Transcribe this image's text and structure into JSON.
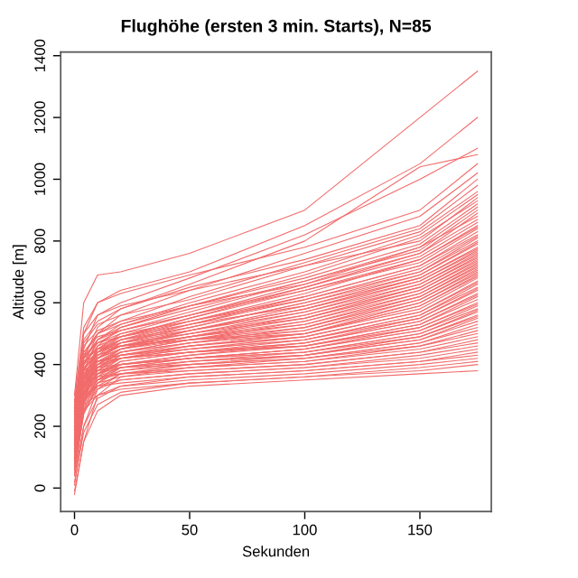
{
  "chart_data": {
    "type": "line",
    "title": "Flughöhe (ersten 3 min. Starts), N=85",
    "xlabel": "Sekunden",
    "ylabel": "Altitude [m]",
    "x": [
      0,
      4,
      10,
      20,
      50,
      100,
      150,
      175
    ],
    "xlim": [
      -6,
      181
    ],
    "ylim": [
      -76,
      1412
    ],
    "xticks": [
      0,
      50,
      100,
      150
    ],
    "yticks": [
      0,
      200,
      400,
      600,
      800,
      1000,
      1200,
      1400
    ],
    "grid": false,
    "marker": "none",
    "line_style": "solid",
    "series": [
      {
        "color": "#f26b6b",
        "values": [
          300,
          600,
          690,
          700,
          760,
          900,
          1200,
          1350
        ]
      },
      {
        "color": "#f26b6b",
        "values": [
          250,
          500,
          600,
          640,
          700,
          850,
          1050,
          1200
        ]
      },
      {
        "color": "#f26b6b",
        "values": [
          200,
          450,
          560,
          600,
          680,
          820,
          1000,
          1100
        ]
      },
      {
        "color": "#f26b6b",
        "values": [
          150,
          420,
          520,
          580,
          660,
          800,
          1040,
          1080
        ]
      },
      {
        "color": "#f26b6b",
        "values": [
          280,
          520,
          600,
          630,
          690,
          780,
          900,
          1050
        ]
      },
      {
        "color": "#f26b6b",
        "values": [
          100,
          400,
          500,
          560,
          640,
          760,
          880,
          1020
        ]
      },
      {
        "color": "#f26b6b",
        "values": [
          220,
          480,
          540,
          580,
          650,
          740,
          850,
          1000
        ]
      },
      {
        "color": "#f26b6b",
        "values": [
          180,
          430,
          500,
          540,
          620,
          730,
          840,
          980
        ]
      },
      {
        "color": "#f26b6b",
        "values": [
          260,
          470,
          530,
          560,
          610,
          720,
          830,
          960
        ]
      },
      {
        "color": "#f26b6b",
        "values": [
          120,
          380,
          480,
          530,
          600,
          700,
          820,
          950
        ]
      },
      {
        "color": "#f26b6b",
        "values": [
          300,
          500,
          560,
          590,
          640,
          720,
          800,
          940
        ]
      },
      {
        "color": "#f26b6b",
        "values": [
          80,
          350,
          460,
          520,
          590,
          690,
          810,
          930
        ]
      },
      {
        "color": "#f26b6b",
        "values": [
          240,
          440,
          500,
          530,
          590,
          680,
          790,
          920
        ]
      },
      {
        "color": "#f26b6b",
        "values": [
          160,
          400,
          470,
          510,
          570,
          670,
          780,
          910
        ]
      },
      {
        "color": "#f26b6b",
        "values": [
          200,
          420,
          480,
          520,
          580,
          670,
          770,
          900
        ]
      },
      {
        "color": "#f26b6b",
        "values": [
          140,
          360,
          450,
          500,
          560,
          660,
          760,
          890
        ]
      },
      {
        "color": "#f26b6b",
        "values": [
          260,
          460,
          510,
          540,
          590,
          660,
          780,
          880
        ]
      },
      {
        "color": "#f26b6b",
        "values": [
          90,
          330,
          440,
          490,
          550,
          650,
          760,
          870
        ]
      },
      {
        "color": "#f26b6b",
        "values": [
          230,
          420,
          480,
          510,
          560,
          650,
          750,
          860
        ]
      },
      {
        "color": "#f26b6b",
        "values": [
          170,
          380,
          450,
          490,
          550,
          640,
          740,
          850
        ]
      },
      {
        "color": "#f26b6b",
        "values": [
          120,
          340,
          430,
          480,
          540,
          630,
          740,
          845
        ]
      },
      {
        "color": "#f26b6b",
        "values": [
          280,
          440,
          490,
          510,
          560,
          640,
          730,
          840
        ]
      },
      {
        "color": "#f26b6b",
        "values": [
          60,
          300,
          420,
          470,
          530,
          620,
          720,
          830
        ]
      },
      {
        "color": "#f26b6b",
        "values": [
          210,
          400,
          460,
          490,
          540,
          620,
          720,
          820
        ]
      },
      {
        "color": "#f26b6b",
        "values": [
          150,
          360,
          440,
          480,
          530,
          610,
          710,
          815
        ]
      },
      {
        "color": "#f26b6b",
        "values": [
          250,
          420,
          470,
          500,
          540,
          610,
          700,
          810
        ]
      },
      {
        "color": "#f26b6b",
        "values": [
          100,
          320,
          420,
          470,
          520,
          600,
          700,
          800
        ]
      },
      {
        "color": "#f26b6b",
        "values": [
          190,
          380,
          440,
          480,
          520,
          600,
          690,
          795
        ]
      },
      {
        "color": "#f26b6b",
        "values": [
          130,
          340,
          420,
          460,
          510,
          590,
          690,
          790
        ]
      },
      {
        "color": "#f26b6b",
        "values": [
          270,
          430,
          470,
          490,
          530,
          590,
          680,
          780
        ]
      },
      {
        "color": "#f26b6b",
        "values": [
          80,
          300,
          400,
          450,
          510,
          580,
          680,
          775
        ]
      },
      {
        "color": "#f26b6b",
        "values": [
          220,
          390,
          440,
          470,
          510,
          580,
          670,
          770
        ]
      },
      {
        "color": "#f26b6b",
        "values": [
          160,
          350,
          420,
          460,
          500,
          570,
          670,
          765
        ]
      },
      {
        "color": "#f26b6b",
        "values": [
          240,
          410,
          450,
          480,
          510,
          570,
          660,
          760
        ]
      },
      {
        "color": "#f26b6b",
        "values": [
          110,
          310,
          400,
          450,
          490,
          560,
          660,
          755
        ]
      },
      {
        "color": "#f26b6b",
        "values": [
          200,
          370,
          430,
          460,
          500,
          560,
          650,
          750
        ]
      },
      {
        "color": "#f26b6b",
        "values": [
          140,
          330,
          410,
          450,
          490,
          550,
          650,
          745
        ]
      },
      {
        "color": "#f26b6b",
        "values": [
          260,
          410,
          450,
          470,
          500,
          550,
          640,
          740
        ]
      },
      {
        "color": "#f26b6b",
        "values": [
          70,
          280,
          390,
          440,
          480,
          540,
          640,
          735
        ]
      },
      {
        "color": "#f26b6b",
        "values": [
          180,
          360,
          420,
          450,
          490,
          540,
          630,
          730
        ]
      },
      {
        "color": "#f26b6b",
        "values": [
          120,
          320,
          400,
          440,
          480,
          530,
          630,
          725
        ]
      },
      {
        "color": "#f26b6b",
        "values": [
          230,
          390,
          430,
          460,
          490,
          530,
          620,
          720
        ]
      },
      {
        "color": "#f26b6b",
        "values": [
          90,
          290,
          380,
          430,
          470,
          520,
          620,
          715
        ]
      },
      {
        "color": "#f26b6b",
        "values": [
          200,
          370,
          420,
          450,
          480,
          520,
          610,
          710
        ]
      },
      {
        "color": "#f26b6b",
        "values": [
          150,
          340,
          400,
          440,
          470,
          510,
          610,
          705
        ]
      },
      {
        "color": "#f26b6b",
        "values": [
          250,
          400,
          440,
          460,
          480,
          510,
          600,
          700
        ]
      },
      {
        "color": "#f26b6b",
        "values": [
          60,
          270,
          370,
          420,
          460,
          500,
          600,
          695
        ]
      },
      {
        "color": "#f26b6b",
        "values": [
          190,
          350,
          410,
          440,
          470,
          500,
          590,
          690
        ]
      },
      {
        "color": "#f26b6b",
        "values": [
          130,
          310,
          390,
          430,
          460,
          500,
          590,
          685
        ]
      },
      {
        "color": "#f26b6b",
        "values": [
          280,
          420,
          450,
          460,
          480,
          500,
          580,
          680
        ]
      },
      {
        "color": "#f26b6b",
        "values": [
          100,
          300,
          380,
          420,
          450,
          490,
          570,
          670
        ]
      },
      {
        "color": "#f26b6b",
        "values": [
          210,
          360,
          410,
          430,
          460,
          490,
          570,
          665
        ]
      },
      {
        "color": "#f26b6b",
        "values": [
          160,
          330,
          390,
          420,
          450,
          480,
          560,
          660
        ]
      },
      {
        "color": "#f26b6b",
        "values": [
          40,
          250,
          360,
          410,
          440,
          480,
          560,
          650
        ]
      },
      {
        "color": "#f26b6b",
        "values": [
          240,
          380,
          410,
          430,
          450,
          480,
          550,
          645
        ]
      },
      {
        "color": "#f26b6b",
        "values": [
          120,
          300,
          370,
          410,
          440,
          470,
          550,
          640
        ]
      },
      {
        "color": "#f26b6b",
        "values": [
          180,
          340,
          390,
          420,
          440,
          470,
          540,
          630
        ]
      },
      {
        "color": "#f26b6b",
        "values": [
          80,
          270,
          350,
          400,
          430,
          470,
          540,
          625
        ]
      },
      {
        "color": "#f26b6b",
        "values": [
          220,
          360,
          400,
          420,
          440,
          460,
          530,
          620
        ]
      },
      {
        "color": "#f26b6b",
        "values": [
          140,
          310,
          370,
          400,
          430,
          460,
          530,
          610
        ]
      },
      {
        "color": "#f26b6b",
        "values": [
          260,
          380,
          410,
          420,
          440,
          460,
          520,
          600
        ]
      },
      {
        "color": "#f26b6b",
        "values": [
          50,
          240,
          340,
          390,
          420,
          450,
          520,
          595
        ]
      },
      {
        "color": "#f26b6b",
        "values": [
          200,
          340,
          380,
          400,
          420,
          450,
          510,
          590
        ]
      },
      {
        "color": "#f26b6b",
        "values": [
          110,
          280,
          350,
          390,
          420,
          450,
          510,
          580
        ]
      },
      {
        "color": "#f26b6b",
        "values": [
          170,
          320,
          370,
          400,
          420,
          440,
          500,
          575
        ]
      },
      {
        "color": "#f26b6b",
        "values": [
          230,
          360,
          390,
          400,
          420,
          440,
          500,
          570
        ]
      },
      {
        "color": "#f26b6b",
        "values": [
          90,
          260,
          340,
          380,
          410,
          440,
          490,
          560
        ]
      },
      {
        "color": "#f26b6b",
        "values": [
          150,
          300,
          360,
          390,
          410,
          430,
          490,
          555
        ]
      },
      {
        "color": "#f26b6b",
        "values": [
          10,
          200,
          320,
          370,
          400,
          430,
          480,
          550
        ]
      },
      {
        "color": "#f26b6b",
        "values": [
          200,
          330,
          370,
          390,
          410,
          430,
          480,
          540
        ]
      },
      {
        "color": "#f26b6b",
        "values": [
          130,
          290,
          350,
          380,
          400,
          420,
          470,
          530
        ]
      },
      {
        "color": "#f26b6b",
        "values": [
          250,
          360,
          380,
          390,
          400,
          420,
          470,
          520
        ]
      },
      {
        "color": "#f26b6b",
        "values": [
          70,
          240,
          330,
          370,
          390,
          420,
          460,
          510
        ]
      },
      {
        "color": "#f26b6b",
        "values": [
          180,
          310,
          350,
          370,
          390,
          410,
          460,
          500
        ]
      },
      {
        "color": "#f26b6b",
        "values": [
          -20,
          150,
          300,
          360,
          390,
          410,
          450,
          490
        ]
      },
      {
        "color": "#f26b6b",
        "values": [
          140,
          280,
          340,
          360,
          380,
          400,
          440,
          480
        ]
      },
      {
        "color": "#f26b6b",
        "values": [
          220,
          330,
          360,
          370,
          380,
          400,
          440,
          470
        ]
      },
      {
        "color": "#f26b6b",
        "values": [
          100,
          250,
          320,
          350,
          370,
          390,
          430,
          460
        ]
      },
      {
        "color": "#f26b6b",
        "values": [
          160,
          290,
          330,
          350,
          370,
          390,
          420,
          450
        ]
      },
      {
        "color": "#f26b6b",
        "values": [
          40,
          200,
          290,
          330,
          360,
          380,
          410,
          440
        ]
      },
      {
        "color": "#f26b6b",
        "values": [
          200,
          300,
          330,
          340,
          360,
          380,
          410,
          430
        ]
      },
      {
        "color": "#f26b6b",
        "values": [
          120,
          250,
          300,
          330,
          350,
          370,
          400,
          420
        ]
      },
      {
        "color": "#f26b6b",
        "values": [
          20,
          180,
          270,
          310,
          340,
          360,
          390,
          410
        ]
      },
      {
        "color": "#f26b6b",
        "values": [
          180,
          270,
          300,
          320,
          340,
          360,
          380,
          400
        ]
      },
      {
        "color": "#f26b6b",
        "values": [
          -10,
          150,
          250,
          300,
          330,
          350,
          370,
          380
        ]
      }
    ]
  }
}
